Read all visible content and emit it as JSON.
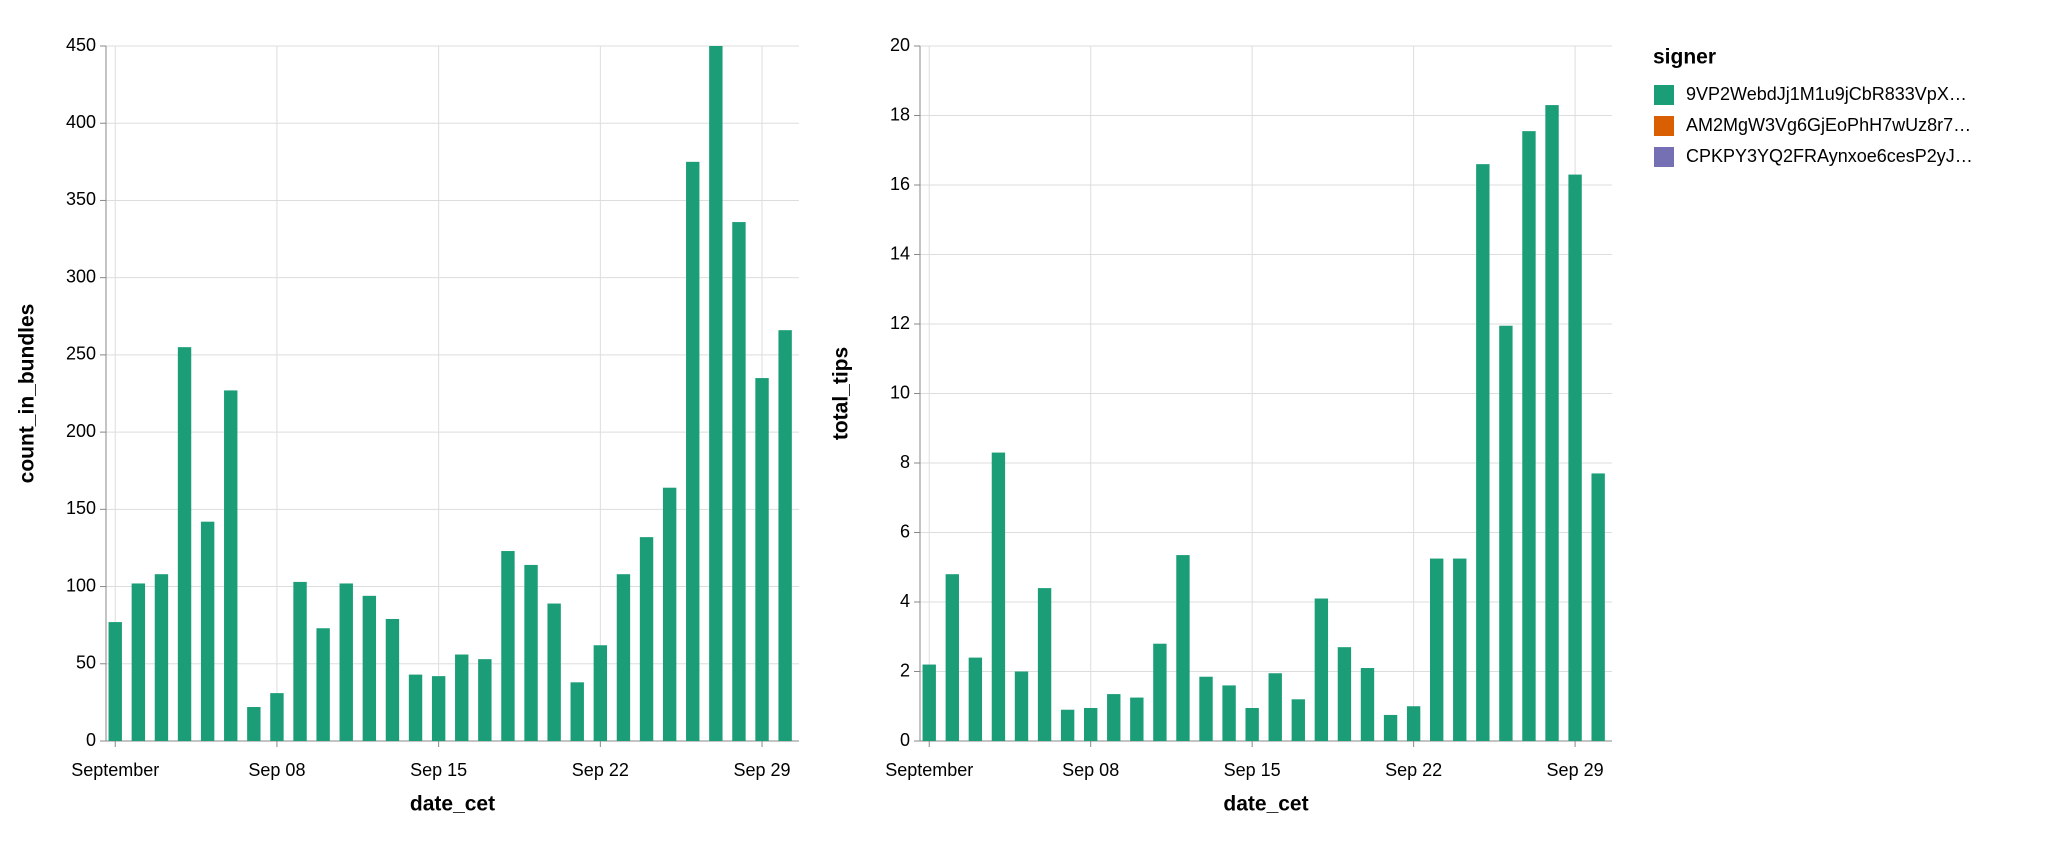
{
  "chart_data": [
    {
      "type": "bar",
      "x_label": "date_cet",
      "y_label": "count_in_bundles",
      "x": [
        1,
        2,
        3,
        4,
        5,
        6,
        7,
        8,
        9,
        10,
        11,
        12,
        13,
        14,
        15,
        16,
        17,
        18,
        19,
        20,
        21,
        22,
        23,
        24,
        25,
        26,
        27,
        28,
        29,
        30
      ],
      "series": [
        {
          "name": "9VP2WebdJj1M1u9jCbR833VpX…",
          "color": "#1b9e77",
          "values": [
            77,
            102,
            108,
            255,
            142,
            227,
            22,
            31,
            103,
            73,
            102,
            94,
            79,
            43,
            42,
            56,
            53,
            123,
            114,
            89,
            38,
            62,
            108,
            132,
            164,
            375,
            450,
            336,
            235,
            266
          ]
        }
      ],
      "xlim": [
        0.6,
        30.6
      ],
      "xticks": [
        {
          "value": 1,
          "label": "September"
        },
        {
          "value": 8,
          "label": "Sep 08"
        },
        {
          "value": 15,
          "label": "Sep 15"
        },
        {
          "value": 22,
          "label": "Sep 22"
        },
        {
          "value": 29,
          "label": "Sep 29"
        }
      ],
      "ylim": [
        0,
        450
      ],
      "yticks": [
        0,
        50,
        100,
        150,
        200,
        250,
        300,
        350,
        400,
        450
      ],
      "grid": true
    },
    {
      "type": "bar",
      "x_label": "date_cet",
      "y_label": "total_tips",
      "x": [
        1,
        2,
        3,
        4,
        5,
        6,
        7,
        8,
        9,
        10,
        11,
        12,
        13,
        14,
        15,
        16,
        17,
        18,
        19,
        20,
        21,
        22,
        23,
        24,
        25,
        26,
        27,
        28,
        29,
        30
      ],
      "series": [
        {
          "name": "9VP2WebdJj1M1u9jCbR833VpX…",
          "color": "#1b9e77",
          "values": [
            2.2,
            4.8,
            2.4,
            8.3,
            2.0,
            4.4,
            0.9,
            0.95,
            1.35,
            1.25,
            2.8,
            5.35,
            1.85,
            1.6,
            0.95,
            1.95,
            1.2,
            4.1,
            2.7,
            2.1,
            0.75,
            1.0,
            5.25,
            5.25,
            16.6,
            11.95,
            17.55,
            18.3,
            16.3,
            7.7
          ]
        }
      ],
      "xlim": [
        0.6,
        30.6
      ],
      "xticks": [
        {
          "value": 1,
          "label": "September"
        },
        {
          "value": 8,
          "label": "Sep 08"
        },
        {
          "value": 15,
          "label": "Sep 15"
        },
        {
          "value": 22,
          "label": "Sep 22"
        },
        {
          "value": 29,
          "label": "Sep 29"
        }
      ],
      "ylim": [
        0,
        20
      ],
      "yticks": [
        0,
        2,
        4,
        6,
        8,
        10,
        12,
        14,
        16,
        18,
        20
      ],
      "grid": true
    }
  ],
  "legend": {
    "title": "signer",
    "entries": [
      {
        "name": "9VP2WebdJj1M1u9jCbR833VpX…",
        "color": "#1b9e77"
      },
      {
        "name": "AM2MgW3Vg6GjEoPhH7wUz8r7…",
        "color": "#d95f02"
      },
      {
        "name": "CPKPY3YQ2FRAynxoe6cesP2yJ…",
        "color": "#7570b3"
      }
    ]
  }
}
